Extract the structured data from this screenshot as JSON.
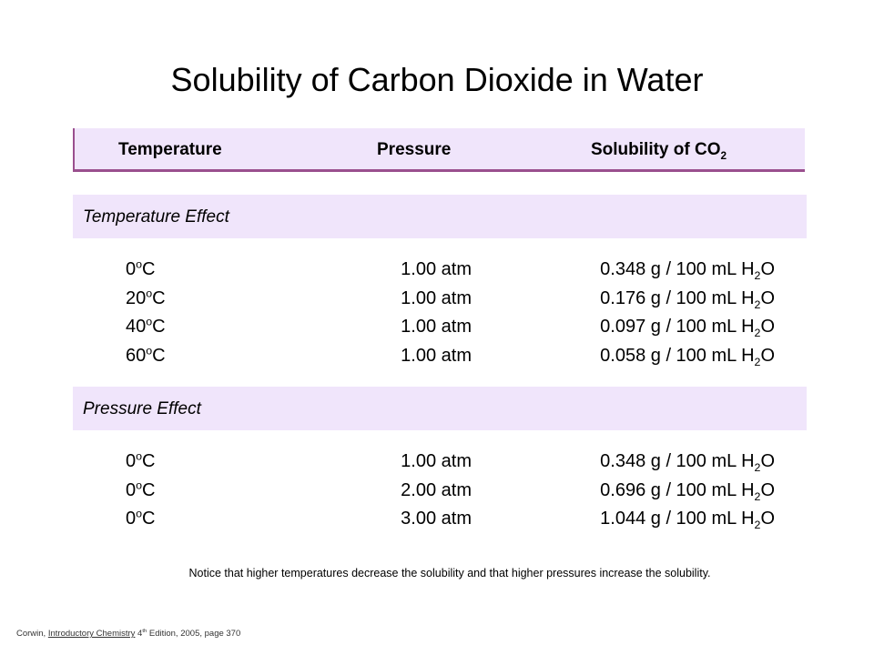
{
  "title": "Solubility of Carbon Dioxide in Water",
  "header": {
    "temperature": "Temperature",
    "pressure": "Pressure",
    "solubility_prefix": "Solubility of CO",
    "solubility_sub": "2"
  },
  "sections": [
    {
      "label": "Temperature Effect",
      "rows": [
        {
          "temp_value": "0",
          "temp_sup": "o",
          "temp_unit": "C",
          "pressure": "1.00 atm",
          "sol_value": "0.348 g / 100 mL H",
          "sol_sub": "2",
          "sol_tail": "O"
        },
        {
          "temp_value": "20",
          "temp_sup": "o",
          "temp_unit": "C",
          "pressure": "1.00 atm",
          "sol_value": "0.176 g / 100 mL H",
          "sol_sub": "2",
          "sol_tail": "O"
        },
        {
          "temp_value": "40",
          "temp_sup": "o",
          "temp_unit": "C",
          "pressure": "1.00 atm",
          "sol_value": "0.097 g / 100 mL H",
          "sol_sub": "2",
          "sol_tail": "O"
        },
        {
          "temp_value": "60",
          "temp_sup": "o",
          "temp_unit": "C",
          "pressure": "1.00 atm",
          "sol_value": "0.058 g / 100 mL H",
          "sol_sub": "2",
          "sol_tail": "O"
        }
      ]
    },
    {
      "label": "Pressure Effect",
      "rows": [
        {
          "temp_value": "0",
          "temp_sup": "o",
          "temp_unit": "C",
          "pressure": "1.00 atm",
          "sol_value": "0.348 g / 100 mL H",
          "sol_sub": "2",
          "sol_tail": "O"
        },
        {
          "temp_value": "0",
          "temp_sup": "o",
          "temp_unit": "C",
          "pressure": "2.00 atm",
          "sol_value": "0.696 g / 100 mL H",
          "sol_sub": "2",
          "sol_tail": "O"
        },
        {
          "temp_value": "0",
          "temp_sup": "o",
          "temp_unit": "C",
          "pressure": "3.00 atm",
          "sol_value": "1.044 g / 100 mL H",
          "sol_sub": "2",
          "sol_tail": "O"
        }
      ]
    }
  ],
  "note": "Notice that higher temperatures decrease the solubility and that higher pressures increase the solubility.",
  "citation": {
    "author": "Corwin, ",
    "book": "Introductory Chemistry",
    "edition_num": " 4",
    "edition_sup": "th",
    "rest": " Edition, 2005, page 370"
  },
  "colors": {
    "band_fill": "#f0e5fb",
    "header_border": "#9a4f8e"
  }
}
